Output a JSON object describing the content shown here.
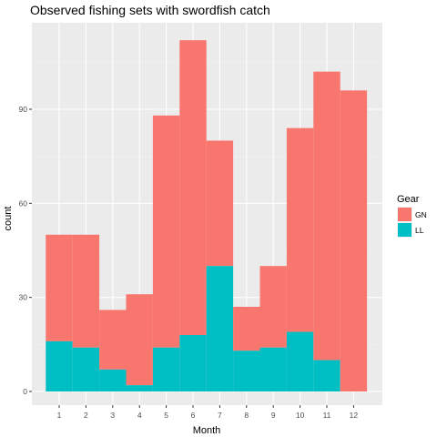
{
  "chart_data": {
    "type": "bar",
    "stacked": true,
    "title": "Observed fishing sets with swordfish catch",
    "xlabel": "Month",
    "ylabel": "count",
    "categories": [
      "1",
      "2",
      "3",
      "4",
      "5",
      "6",
      "7",
      "8",
      "9",
      "10",
      "11",
      "12"
    ],
    "y_ticks": [
      "0",
      "30",
      "60",
      "90"
    ],
    "ylim": [
      0,
      118
    ],
    "series": [
      {
        "name": "GN",
        "color": "#F8766D",
        "values": [
          34,
          36,
          19,
          29,
          74,
          94,
          40,
          14,
          26,
          65,
          92,
          96
        ]
      },
      {
        "name": "LL",
        "color": "#00BFC4",
        "values": [
          16,
          14,
          7,
          2,
          14,
          18,
          40,
          13,
          14,
          19,
          10,
          0
        ]
      }
    ],
    "legend": {
      "title": "Gear",
      "position": "right"
    },
    "grid": true,
    "panel_background": "#EBEBEB"
  }
}
